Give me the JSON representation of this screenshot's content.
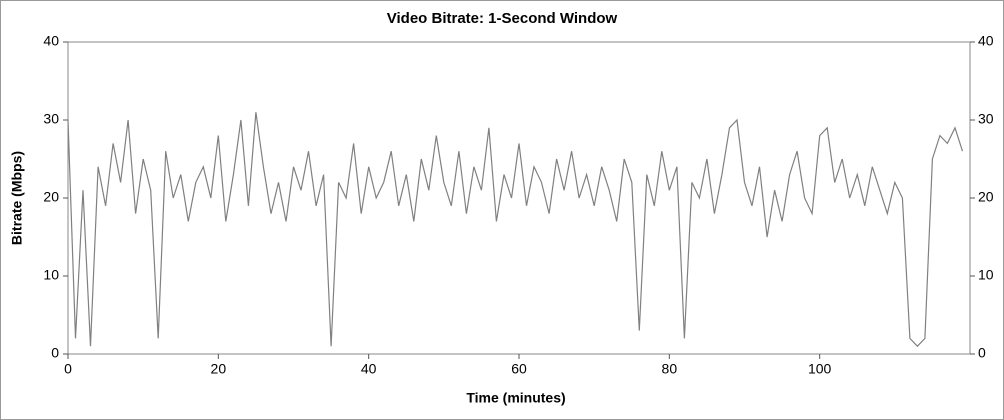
{
  "chart_data": {
    "type": "line",
    "title": "Video Bitrate: 1-Second Window",
    "x_label": "Time (minutes)",
    "y_label": "Bitrate (Mbps)",
    "x": [
      0,
      1,
      2,
      3,
      4,
      5,
      6,
      7,
      8,
      9,
      10,
      11,
      12,
      13,
      14,
      15,
      16,
      17,
      18,
      19,
      20,
      21,
      22,
      23,
      24,
      25,
      26,
      27,
      28,
      29,
      30,
      31,
      32,
      33,
      34,
      35,
      36,
      37,
      38,
      39,
      40,
      41,
      42,
      43,
      44,
      45,
      46,
      47,
      48,
      49,
      50,
      51,
      52,
      53,
      54,
      55,
      56,
      57,
      58,
      59,
      60,
      61,
      62,
      63,
      64,
      65,
      66,
      67,
      68,
      69,
      70,
      71,
      72,
      73,
      74,
      75,
      76,
      77,
      78,
      79,
      80,
      81,
      82,
      83,
      84,
      85,
      86,
      87,
      88,
      89,
      90,
      91,
      92,
      93,
      94,
      95,
      96,
      97,
      98,
      99,
      100,
      101,
      102,
      103,
      104,
      105,
      106,
      107,
      108,
      109,
      110,
      111,
      112,
      113,
      114,
      115,
      116,
      117,
      118,
      119
    ],
    "series": [
      {
        "name": "Bitrate",
        "color": "#808080",
        "values": [
          30,
          2,
          21,
          1,
          24,
          19,
          27,
          22,
          30,
          18,
          25,
          21,
          2,
          26,
          20,
          23,
          17,
          22,
          24,
          20,
          28,
          17,
          23,
          30,
          19,
          31,
          24,
          18,
          22,
          17,
          24,
          21,
          26,
          19,
          23,
          1,
          22,
          20,
          27,
          18,
          24,
          20,
          22,
          26,
          19,
          23,
          17,
          25,
          21,
          28,
          22,
          19,
          26,
          18,
          24,
          21,
          29,
          17,
          23,
          20,
          27,
          19,
          24,
          22,
          18,
          25,
          21,
          26,
          20,
          23,
          19,
          24,
          21,
          17,
          25,
          22,
          3,
          23,
          19,
          26,
          21,
          24,
          2,
          22,
          20,
          25,
          18,
          23,
          29,
          30,
          22,
          19,
          24,
          15,
          21,
          17,
          23,
          26,
          20,
          18,
          28,
          29,
          22,
          25,
          20,
          23,
          19,
          24,
          21,
          18,
          22,
          20,
          2,
          1,
          2,
          25,
          28,
          27,
          29,
          26
        ]
      }
    ],
    "xlim": [
      0,
      120
    ],
    "ylim": [
      0,
      40
    ],
    "y2lim": [
      0,
      40
    ],
    "xticks": [
      0,
      20,
      40,
      60,
      80,
      100
    ],
    "yticks": [
      0,
      10,
      20,
      30,
      40
    ],
    "y2ticks": [
      0,
      10,
      20,
      30,
      40
    ]
  }
}
